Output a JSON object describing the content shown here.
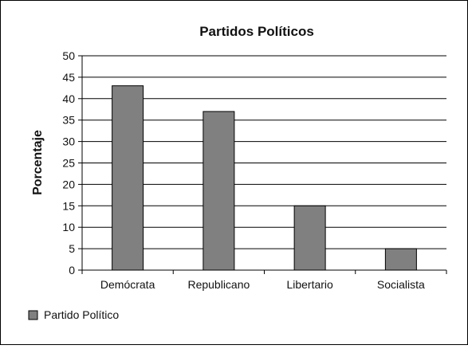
{
  "chart_data": {
    "type": "bar",
    "title": "Partidos Políticos",
    "xlabel": "",
    "ylabel": "Porcentaje",
    "categories": [
      "Demócrata",
      "Republicano",
      "Libertario",
      "Socialista"
    ],
    "series": [
      {
        "name": "Partido Político",
        "values": [
          43,
          37,
          15,
          5
        ]
      }
    ],
    "yticks": [
      "0",
      "5",
      "10",
      "15",
      "20",
      "25",
      "30",
      "35",
      "40",
      "45",
      "50"
    ],
    "ylim": [
      0,
      50
    ],
    "grid": true,
    "legend_position": "bottom-left",
    "colors": {
      "bar": "#808080",
      "bar_stroke": "#000000",
      "grid": "#000000",
      "frame": "#000000",
      "background": "#ffffff"
    }
  }
}
